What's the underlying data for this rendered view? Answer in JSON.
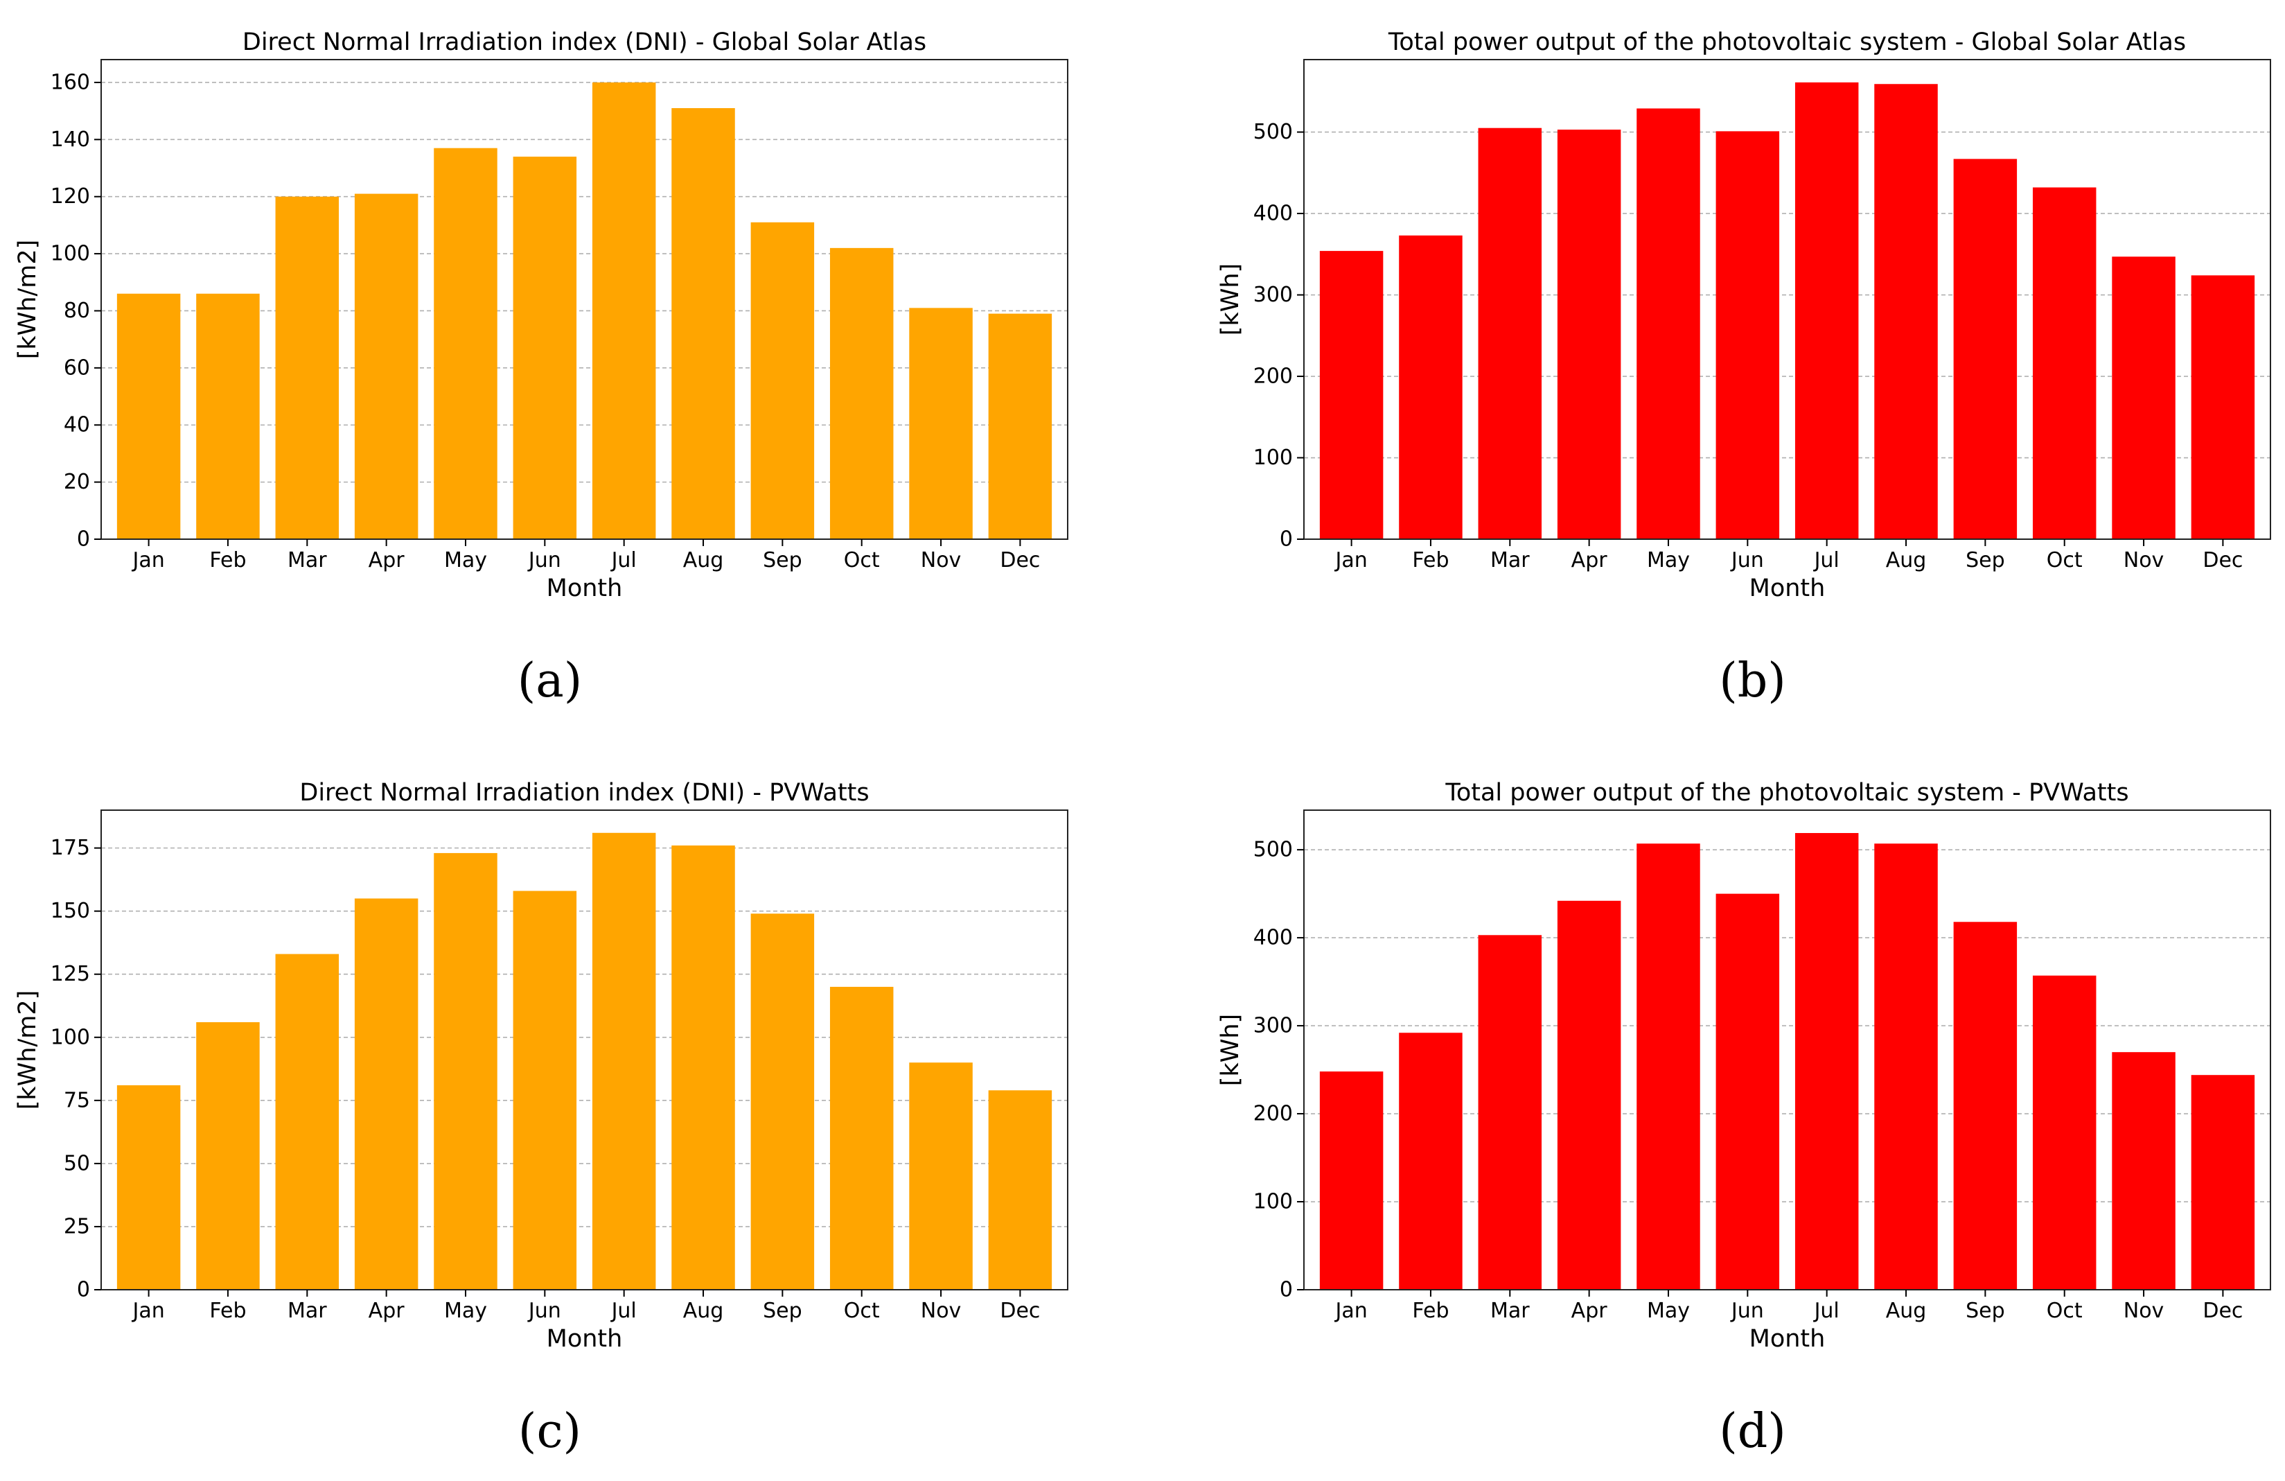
{
  "chart_data": [
    {
      "type": "bar",
      "id": "a",
      "title": "Direct Normal Irradiation index (DNI) - Global Solar Atlas",
      "xlabel": "Month",
      "ylabel": "[kWh/m2]",
      "caption": "(a)",
      "categories": [
        "Jan",
        "Feb",
        "Mar",
        "Apr",
        "May",
        "Jun",
        "Jul",
        "Aug",
        "Sep",
        "Oct",
        "Nov",
        "Dec"
      ],
      "values": [
        86,
        86,
        120,
        121,
        137,
        134,
        160,
        151,
        111,
        102,
        81,
        79
      ],
      "ylim": [
        0,
        168
      ],
      "yticks": [
        0,
        20,
        40,
        60,
        80,
        100,
        120,
        140,
        160
      ],
      "color": "#FFA500",
      "grid": true
    },
    {
      "type": "bar",
      "id": "b",
      "title": "Total power output of the photovoltaic system - Global Solar Atlas",
      "xlabel": "Month",
      "ylabel": "[kWh]",
      "caption": "(b)",
      "categories": [
        "Jan",
        "Feb",
        "Mar",
        "Apr",
        "May",
        "Jun",
        "Jul",
        "Aug",
        "Sep",
        "Oct",
        "Nov",
        "Dec"
      ],
      "values": [
        354,
        373,
        505,
        503,
        529,
        501,
        561,
        559,
        467,
        432,
        347,
        324
      ],
      "ylim": [
        0,
        589
      ],
      "yticks": [
        0,
        100,
        200,
        300,
        400,
        500
      ],
      "color": "#FF0000",
      "grid": true
    },
    {
      "type": "bar",
      "id": "c",
      "title": "Direct Normal Irradiation index (DNI) - PVWatts",
      "xlabel": "Month",
      "ylabel": "[kWh/m2]",
      "caption": "(c)",
      "categories": [
        "Jan",
        "Feb",
        "Mar",
        "Apr",
        "May",
        "Jun",
        "Jul",
        "Aug",
        "Sep",
        "Oct",
        "Nov",
        "Dec"
      ],
      "values": [
        81,
        106,
        133,
        155,
        173,
        158,
        181,
        176,
        149,
        120,
        90,
        79
      ],
      "ylim": [
        0,
        190
      ],
      "yticks": [
        0,
        25,
        50,
        75,
        100,
        125,
        150,
        175
      ],
      "color": "#FFA500",
      "grid": true
    },
    {
      "type": "bar",
      "id": "d",
      "title": "Total power output of the photovoltaic system - PVWatts",
      "xlabel": "Month",
      "ylabel": "[kWh]",
      "caption": "(d)",
      "categories": [
        "Jan",
        "Feb",
        "Mar",
        "Apr",
        "May",
        "Jun",
        "Jul",
        "Aug",
        "Sep",
        "Oct",
        "Nov",
        "Dec"
      ],
      "values": [
        248,
        292,
        403,
        442,
        507,
        450,
        519,
        507,
        418,
        357,
        270,
        244
      ],
      "ylim": [
        0,
        545
      ],
      "yticks": [
        0,
        100,
        200,
        300,
        400,
        500
      ],
      "color": "#FF0000",
      "grid": true
    }
  ]
}
